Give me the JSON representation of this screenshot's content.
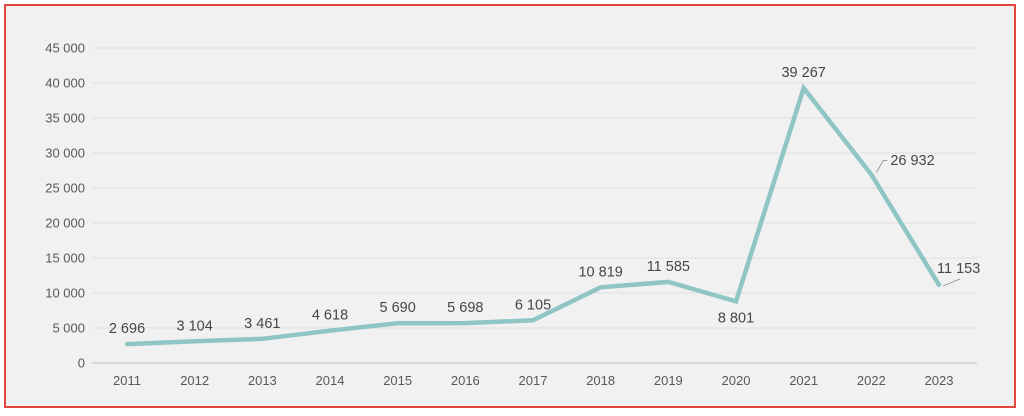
{
  "chart_data": {
    "type": "line",
    "categories": [
      "2011",
      "2012",
      "2013",
      "2014",
      "2015",
      "2016",
      "2017",
      "2018",
      "2019",
      "2020",
      "2021",
      "2022",
      "2023"
    ],
    "values": [
      2696,
      3104,
      3461,
      4618,
      5690,
      5698,
      6105,
      10819,
      11585,
      8801,
      39267,
      26932,
      11153
    ],
    "data_labels": [
      "2 696",
      "3 104",
      "3 461",
      "4 618",
      "5 690",
      "5 698",
      "6 105",
      "10 819",
      "11 585",
      "8 801",
      "39 267",
      "26 932",
      "11 153"
    ],
    "title": "",
    "xlabel": "",
    "ylabel": "",
    "ylim": [
      0,
      45000
    ],
    "ytick_step": 5000,
    "ytick_labels": [
      "0",
      "5 000",
      "10 000",
      "15 000",
      "20 000",
      "25 000",
      "30 000",
      "35 000",
      "40 000",
      "45 000"
    ],
    "grid": true,
    "legend": "none",
    "number_format": "space-thousands",
    "label_placements": [
      "above",
      "above",
      "above",
      "above",
      "above",
      "above",
      "above",
      "above",
      "above",
      "below",
      "above",
      "right-leader",
      "above-right-leader"
    ],
    "colors": {
      "line": "#8fc5c5",
      "data_label_text": "#464646",
      "tick_text": "#595959",
      "gridline": "#e0e0e0",
      "axis_line": "#cfcfcf",
      "leader_line": "#9a9a9a",
      "frame_border": "#e2473f",
      "plot_background": "#f1f1f1"
    }
  }
}
